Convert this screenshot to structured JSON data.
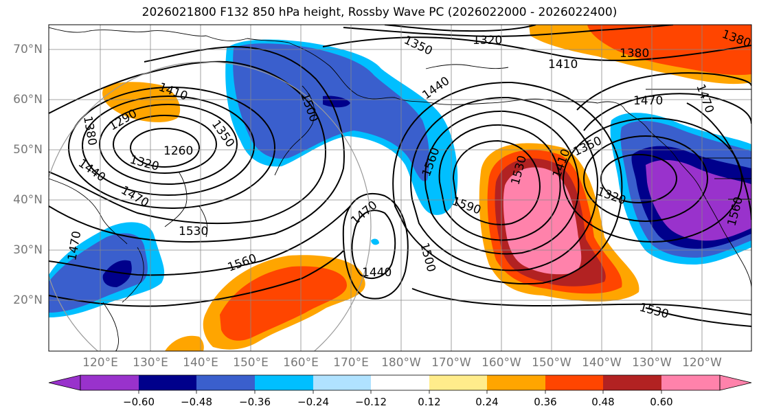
{
  "title": "2026021800 F132 850 hPa height, Rossby Wave PC (2026022000 - 2026022400)",
  "map": {
    "lat_labels": [
      "70°N",
      "60°N",
      "50°N",
      "40°N",
      "30°N",
      "20°N"
    ],
    "lon_labels": [
      "120°E",
      "130°E",
      "140°E",
      "150°E",
      "160°E",
      "170°E",
      "180°W",
      "170°W",
      "160°W",
      "150°W",
      "140°W",
      "130°W",
      "120°W"
    ],
    "contour_labels": [
      "1350",
      "1320",
      "1380",
      "1410",
      "1440",
      "1410",
      "1470",
      "1380",
      "1470",
      "1290",
      "1350",
      "1380",
      "1260",
      "1320",
      "1440",
      "1470",
      "1500",
      "1530",
      "1560",
      "1470",
      "1440",
      "1500",
      "1560",
      "1590",
      "1530",
      "1410",
      "1350",
      "1320",
      "1560",
      "1530",
      "1470"
    ]
  },
  "colorbar": {
    "ticks": [
      "−0.60",
      "−0.48",
      "−0.36",
      "−0.24",
      "−0.12",
      "0.12",
      "0.24",
      "0.36",
      "0.48",
      "0.60"
    ],
    "colors": [
      "#9932cc",
      "#00008b",
      "#3a5fcd",
      "#00bfff",
      "#b0e2ff",
      "#ffffff",
      "#ffec8b",
      "#ffa500",
      "#ff4500",
      "#b22222",
      "#ff82ab"
    ]
  }
}
